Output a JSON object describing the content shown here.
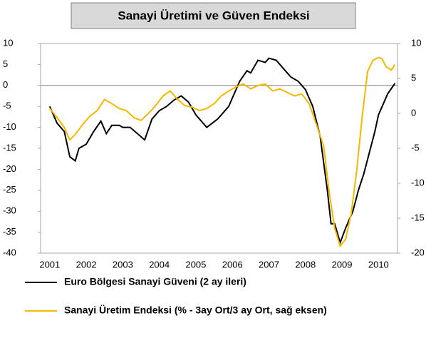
{
  "chart_data": {
    "type": "line",
    "title": "Sanayi Üretimi ve Güven Endeksi",
    "xlim": [
      2000.75,
      2010.52
    ],
    "xticks": [
      2001,
      2002,
      2003,
      2004,
      2005,
      2006,
      2007,
      2008,
      2009,
      2010
    ],
    "ylim": [
      -40,
      10
    ],
    "yticks": [
      -40,
      -35,
      -30,
      -25,
      -20,
      -15,
      -10,
      -5,
      0,
      5,
      10
    ],
    "y2lim": [
      -20,
      10
    ],
    "y2ticks": [
      -20,
      -15,
      -10,
      -5,
      0,
      5,
      10
    ],
    "series": [
      {
        "name": "Euro Bölgesi Sanayi Güveni (2 ay ileri)",
        "color": "#000000",
        "x": [
          2001.0,
          2001.2,
          2001.4,
          2001.55,
          2001.7,
          2001.8,
          2002.0,
          2002.2,
          2002.4,
          2002.55,
          2002.7,
          2002.9,
          2003.0,
          2003.2,
          2003.4,
          2003.6,
          2003.8,
          2004.0,
          2004.2,
          2004.4,
          2004.6,
          2004.8,
          2005.0,
          2005.3,
          2005.6,
          2005.9,
          2006.0,
          2006.2,
          2006.4,
          2006.5,
          2006.7,
          2006.9,
          2007.0,
          2007.2,
          2007.4,
          2007.6,
          2007.8,
          2008.0,
          2008.2,
          2008.4,
          2008.6,
          2008.7,
          2008.8,
          2008.95,
          2009.1,
          2009.3,
          2009.45,
          2009.6,
          2009.75,
          2009.9,
          2010.0,
          2010.1,
          2010.25,
          2010.45
        ],
        "values": [
          -5,
          -9,
          -11,
          -17,
          -18,
          -15,
          -14,
          -11,
          -8.5,
          -11.5,
          -9.5,
          -9.5,
          -10,
          -10,
          -11.5,
          -13,
          -8,
          -6,
          -5,
          -3.5,
          -2.5,
          -4,
          -7,
          -10,
          -8,
          -5,
          -3,
          1,
          3.5,
          3,
          6,
          5.5,
          6.5,
          6,
          4,
          2,
          1,
          -1,
          -5,
          -12,
          -25,
          -33,
          -33,
          -37.5,
          -34,
          -30,
          -25,
          -21,
          -16,
          -11,
          -7,
          -5,
          -2,
          0.5
        ]
      },
      {
        "name": "Sanayi Üretim Endeksi (% - 3ay Ort/3 ay Ort, sağ eksen)",
        "color": "#f5b800",
        "axis": "y2",
        "x": [
          2001.0,
          2001.2,
          2001.4,
          2001.55,
          2001.7,
          2001.9,
          2002.1,
          2002.3,
          2002.5,
          2002.7,
          2002.9,
          2003.1,
          2003.3,
          2003.5,
          2003.7,
          2003.9,
          2004.1,
          2004.3,
          2004.5,
          2004.7,
          2004.9,
          2005.1,
          2005.3,
          2005.5,
          2005.7,
          2005.9,
          2006.1,
          2006.3,
          2006.5,
          2006.7,
          2006.9,
          2007.1,
          2007.3,
          2007.5,
          2007.7,
          2007.9,
          2008.1,
          2008.3,
          2008.5,
          2008.65,
          2008.8,
          2008.95,
          2009.1,
          2009.25,
          2009.4,
          2009.55,
          2009.7,
          2009.85,
          2010.0,
          2010.1,
          2010.2,
          2010.35,
          2010.45
        ],
        "values": [
          0.7,
          -0.6,
          -2,
          -3.8,
          -3,
          -1.6,
          -0.4,
          0.4,
          2,
          1.4,
          0.7,
          0.4,
          -0.6,
          -1,
          0,
          1.1,
          2.5,
          3.2,
          2,
          1.1,
          0.9,
          0.4,
          0.7,
          1.4,
          2.5,
          3.2,
          3.8,
          4.2,
          3.5,
          4,
          4.2,
          3.2,
          3.5,
          3,
          2.5,
          2.8,
          1.4,
          -1.6,
          -4.7,
          -11.3,
          -16.4,
          -19,
          -18,
          -14.4,
          -8.3,
          -0.6,
          6,
          7.6,
          8,
          7.8,
          6.7,
          6.2,
          7
        ]
      }
    ]
  }
}
